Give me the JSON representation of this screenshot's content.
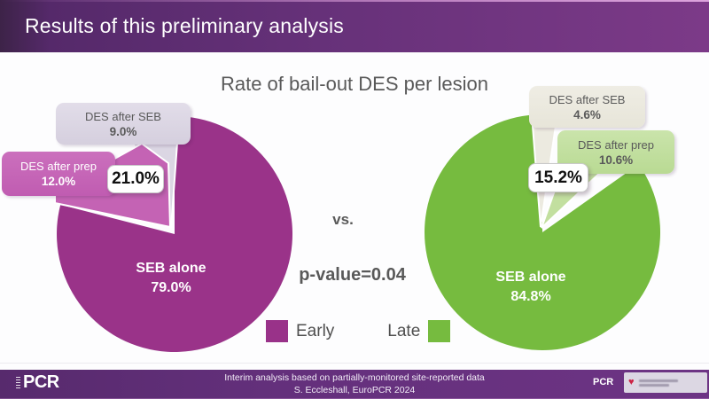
{
  "header": {
    "title": "Results of this preliminary analysis"
  },
  "main_title": "Rate of bail-out DES per lesion",
  "comparison": {
    "vs": "vs.",
    "p_value": "p-value=0.04"
  },
  "legend": {
    "early_label": "Early",
    "early_color": "#993289",
    "late_label": "Late",
    "late_color": "#76BB3F"
  },
  "pies": {
    "early": {
      "des_after_seb_label": "DES after SEB",
      "des_after_seb_value": "9.0%",
      "des_after_prep_label": "DES after prep",
      "des_after_prep_value": "12.0%",
      "total": "21.0%",
      "main_label": "SEB alone",
      "main_value": "79.0%"
    },
    "late": {
      "des_after_seb_label": "DES after SEB",
      "des_after_seb_value": "4.6%",
      "des_after_prep_label": "DES after prep",
      "des_after_prep_value": "10.6%",
      "total": "15.2%",
      "main_label": "SEB alone",
      "main_value": "84.8%"
    }
  },
  "footer": {
    "line1": "Interim analysis based on partially-monitored site-reported data",
    "line2": "S. Eccleshall, EuroPCR 2024",
    "pcr_logo_text": "PCR",
    "pcr_small_text": "PCR",
    "heart_icon": "♥"
  },
  "chart_data": [
    {
      "type": "pie",
      "title": "Early",
      "units": "percent of lesions",
      "slices": [
        {
          "label": "SEB alone",
          "value": 79.0,
          "color": "#9a3389"
        },
        {
          "label": "DES after prep",
          "value": 12.0,
          "color": "#c463b4"
        },
        {
          "label": "DES after SEB",
          "value": 9.0,
          "color": "#dbd6e3"
        }
      ],
      "callout_total": "21.0%",
      "notch_side": "counterclockwise-from-top"
    },
    {
      "type": "pie",
      "title": "Late",
      "units": "percent of lesions",
      "slices": [
        {
          "label": "SEB alone",
          "value": 84.8,
          "color": "#76bb3f"
        },
        {
          "label": "DES after prep",
          "value": 10.6,
          "color": "#c2df9f"
        },
        {
          "label": "DES after SEB",
          "value": 4.6,
          "color": "#eceae0"
        }
      ],
      "callout_total": "15.2%",
      "notch_side": "clockwise-from-top"
    }
  ]
}
